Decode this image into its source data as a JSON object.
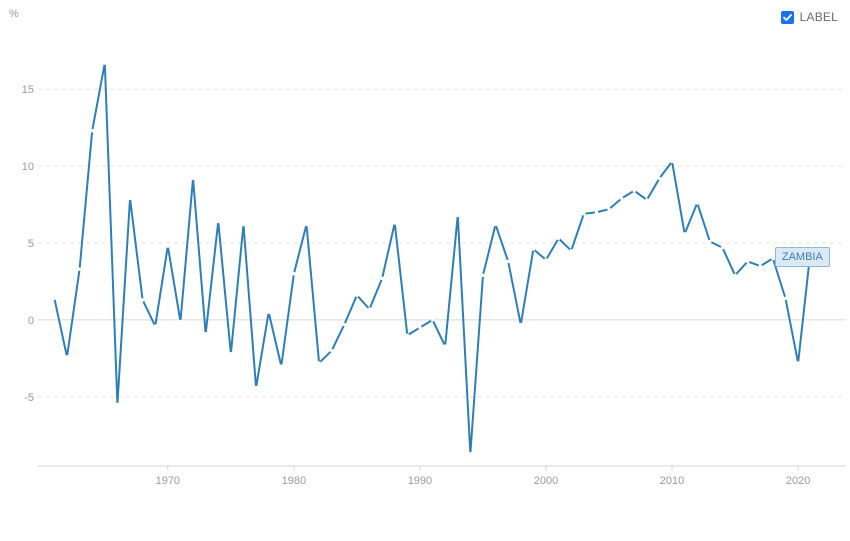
{
  "legend": {
    "label": "LABEL",
    "checked": true
  },
  "colors": {
    "line": "#2f7fb5",
    "grid": "#e3e3e3",
    "zero_line": "#d6d6d6",
    "tick_text": "#9a9a9a",
    "legend_check": "#1a73e8"
  },
  "chart_data": {
    "type": "line",
    "title": "",
    "xlabel": "",
    "ylabel": "%",
    "xlim": [
      1959.7,
      2023.8
    ],
    "ylim": [
      -9.5,
      18.2
    ],
    "x_ticks": [
      1970,
      1980,
      1990,
      2000,
      2010,
      2020
    ],
    "y_ticks": [
      -5,
      0,
      5,
      10,
      15
    ],
    "grid": "horizontal-dashed",
    "legend_position": "top-right",
    "series": [
      {
        "name": "ZAMBIA",
        "color": "#2f7fb5",
        "x": [
          1961,
          1962,
          1963,
          1964,
          1965,
          1966,
          1967,
          1968,
          1969,
          1970,
          1971,
          1972,
          1973,
          1974,
          1975,
          1976,
          1977,
          1978,
          1979,
          1980,
          1981,
          1982,
          1983,
          1984,
          1985,
          1986,
          1987,
          1988,
          1989,
          1990,
          1991,
          1992,
          1993,
          1994,
          1995,
          1996,
          1997,
          1998,
          1999,
          2000,
          2001,
          2002,
          2003,
          2004,
          2005,
          2006,
          2007,
          2008,
          2009,
          2010,
          2011,
          2012,
          2013,
          2014,
          2015,
          2016,
          2017,
          2018,
          2019,
          2020,
          2021,
          2022
        ],
        "values": [
          1.4,
          -2.4,
          3.3,
          12.3,
          16.7,
          -5.5,
          7.9,
          1.3,
          -0.4,
          4.8,
          -0.1,
          9.2,
          -0.9,
          6.4,
          -2.2,
          6.2,
          -4.4,
          0.5,
          -3.0,
          3.0,
          6.2,
          -2.8,
          -2.0,
          -0.3,
          1.6,
          0.7,
          2.7,
          6.3,
          -1.0,
          -0.5,
          0.0,
          -1.7,
          6.8,
          -8.7,
          2.9,
          6.2,
          3.8,
          -0.3,
          4.6,
          3.9,
          5.3,
          4.5,
          6.9,
          7.0,
          7.2,
          7.9,
          8.4,
          7.8,
          9.2,
          10.3,
          5.6,
          7.6,
          5.1,
          4.7,
          2.9,
          3.8,
          3.5,
          4.0,
          1.4,
          -2.8,
          4.6,
          4.7
        ]
      }
    ]
  }
}
